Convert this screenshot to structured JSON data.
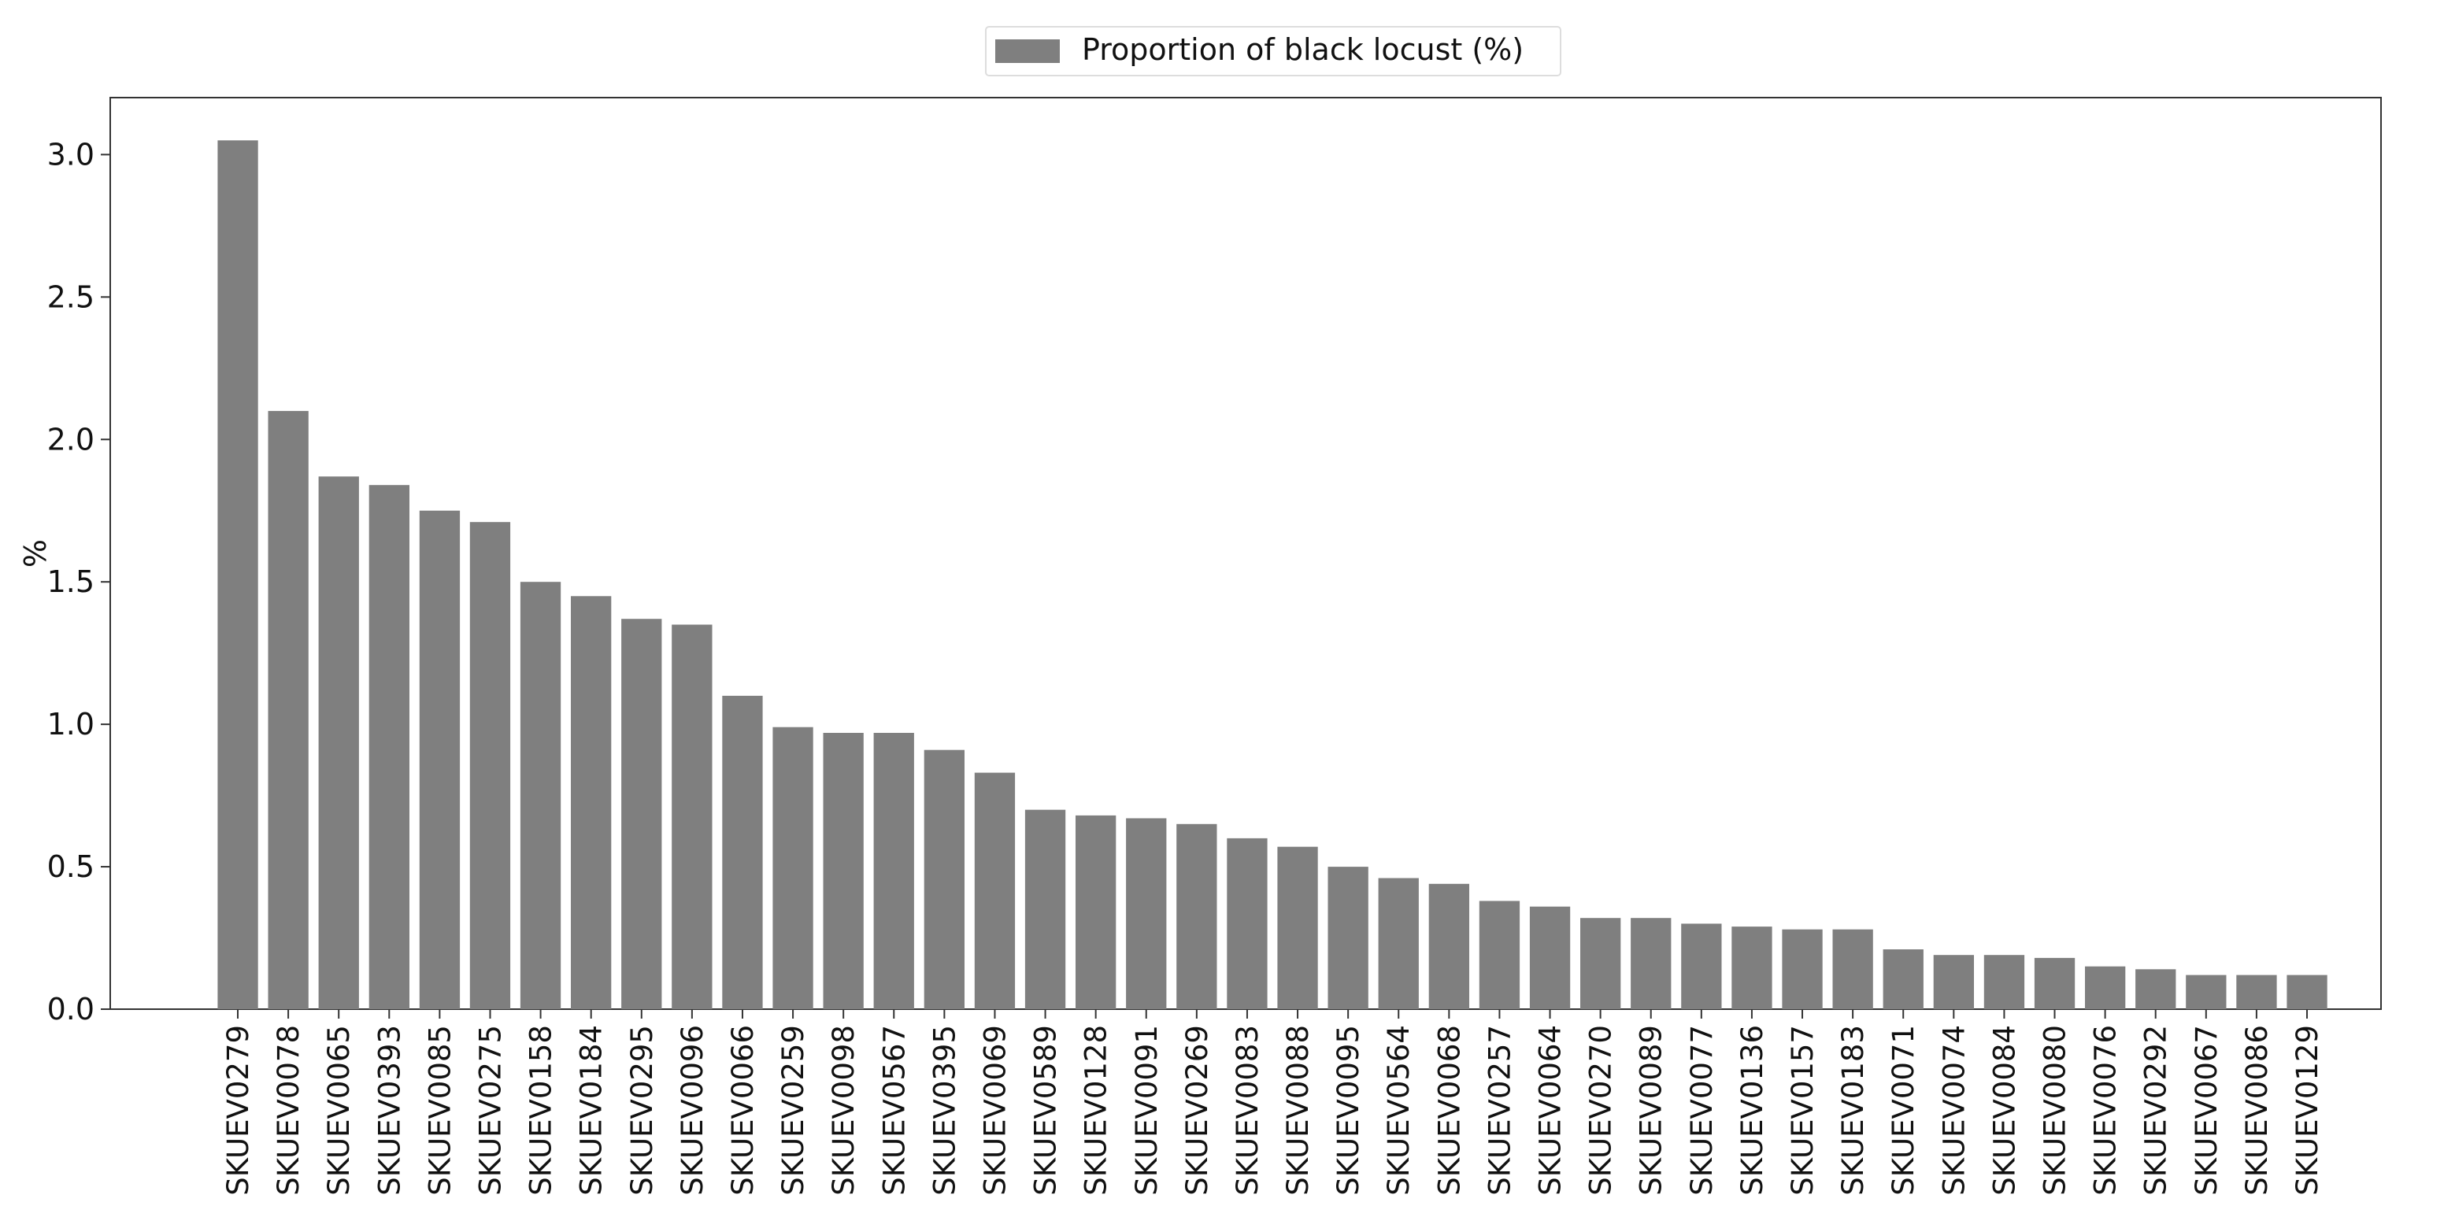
{
  "chart_data": {
    "type": "bar",
    "legend": {
      "label": "Proportion of black locust (%)",
      "position": "top-center"
    },
    "xlabel": "",
    "ylabel": "%",
    "ylim": [
      0,
      3.2
    ],
    "yticks": [
      "0.0",
      "0.5",
      "1.0",
      "1.5",
      "2.0",
      "2.5",
      "3.0"
    ],
    "categories": [
      "SKUEV0279",
      "SKUEV0078",
      "SKUEV0065",
      "SKUEV0393",
      "SKUEV0085",
      "SKUEV0275",
      "SKUEV0158",
      "SKUEV0184",
      "SKUEV0295",
      "SKUEV0096",
      "SKUEV0066",
      "SKUEV0259",
      "SKUEV0098",
      "SKUEV0567",
      "SKUEV0395",
      "SKUEV0069",
      "SKUEV0589",
      "SKUEV0128",
      "SKUEV0091",
      "SKUEV0269",
      "SKUEV0083",
      "SKUEV0088",
      "SKUEV0095",
      "SKUEV0564",
      "SKUEV0068",
      "SKUEV0257",
      "SKUEV0064",
      "SKUEV0270",
      "SKUEV0089",
      "SKUEV0077",
      "SKUEV0136",
      "SKUEV0157",
      "SKUEV0183",
      "SKUEV0071",
      "SKUEV0074",
      "SKUEV0084",
      "SKUEV0080",
      "SKUEV0076",
      "SKUEV0292",
      "SKUEV0067",
      "SKUEV0086",
      "SKUEV0129"
    ],
    "values": [
      3.05,
      2.1,
      1.87,
      1.84,
      1.75,
      1.71,
      1.5,
      1.45,
      1.37,
      1.35,
      1.1,
      0.99,
      0.97,
      0.97,
      0.91,
      0.83,
      0.7,
      0.68,
      0.67,
      0.65,
      0.6,
      0.57,
      0.5,
      0.46,
      0.44,
      0.38,
      0.36,
      0.32,
      0.32,
      0.3,
      0.29,
      0.28,
      0.28,
      0.21,
      0.19,
      0.19,
      0.18,
      0.15,
      0.14,
      0.12,
      0.12,
      0.12
    ],
    "bar_color": "#7f7f7f",
    "grid": false
  }
}
